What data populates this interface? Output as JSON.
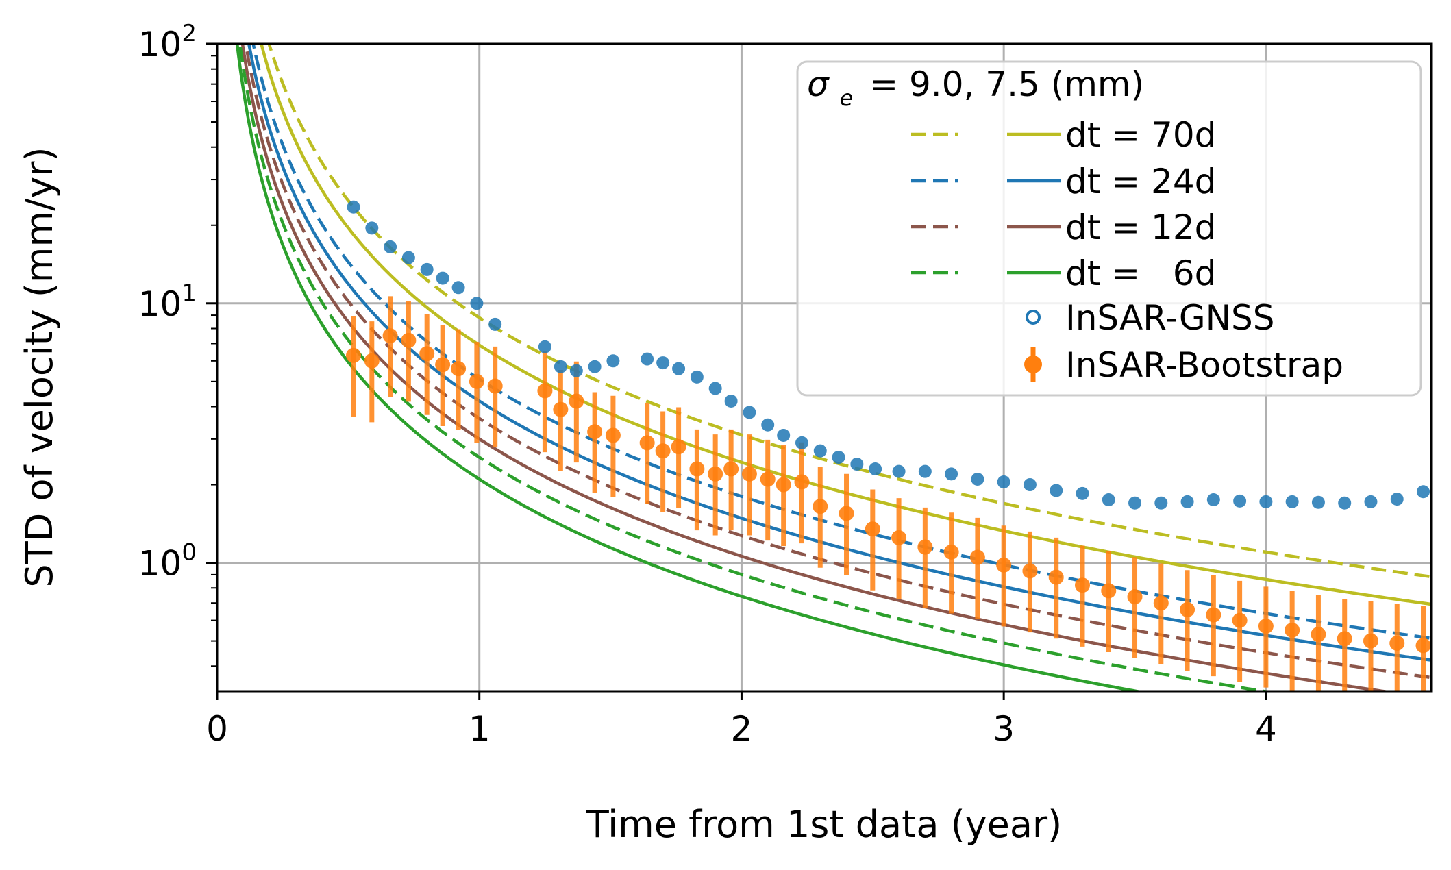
{
  "chart_data": {
    "type": "line",
    "title": "",
    "xlabel": "Time from 1st data (year)",
    "ylabel": "STD of velocity (mm/yr)",
    "xlim": [
      0,
      4.63
    ],
    "ylim": [
      0.32,
      100
    ],
    "yscale": "log",
    "grid": true,
    "xticks": [
      0,
      1,
      2,
      3,
      4
    ],
    "xtick_labels": [
      "0",
      "1",
      "2",
      "3",
      "4"
    ],
    "yticks": [
      1,
      10,
      100
    ],
    "ytick_labels": [
      {
        "base": "10",
        "exp": "0"
      },
      {
        "base": "10",
        "exp": "1"
      },
      {
        "base": "10",
        "exp": "2"
      }
    ],
    "legend": {
      "position": "top-right",
      "title_symbol": "σ",
      "title_subscript": "e",
      "title_rest": "= 9.0, 7.5 (mm)",
      "entries": [
        {
          "label": "dt = 70d"
        },
        {
          "label": "dt = 24d"
        },
        {
          "label": "dt = 12d"
        },
        {
          "label": "dt =   6d"
        },
        {
          "label": "InSAR-GNSS"
        },
        {
          "label": "InSAR-Bootstrap"
        }
      ]
    },
    "model_curves": [
      {
        "name": "dt = 70d",
        "color": "#bcbd22",
        "dashed_k": 8.8,
        "solid_k": 6.9
      },
      {
        "name": "dt = 24d",
        "color": "#1f77b4",
        "dashed_k": 5.1,
        "solid_k": 4.2
      },
      {
        "name": "dt = 12d",
        "color": "#8c564b",
        "dashed_k": 3.6,
        "solid_k": 3.0
      },
      {
        "name": "dt =   6d",
        "color": "#2ca02c",
        "dashed_k": 2.55,
        "solid_k": 2.1
      }
    ],
    "model_form": "std = k * t^-1.5",
    "series": [
      {
        "name": "InSAR-GNSS",
        "color": "#1f77b4",
        "x": [
          0.52,
          0.59,
          0.66,
          0.73,
          0.8,
          0.86,
          0.92,
          0.99,
          1.06,
          1.25,
          1.31,
          1.37,
          1.44,
          1.51,
          1.64,
          1.7,
          1.76,
          1.83,
          1.9,
          1.96,
          2.03,
          2.1,
          2.16,
          2.23,
          2.3,
          2.37,
          2.44,
          2.51,
          2.6,
          2.7,
          2.8,
          2.9,
          3.0,
          3.1,
          3.2,
          3.3,
          3.4,
          3.5,
          3.6,
          3.7,
          3.8,
          3.9,
          4.0,
          4.1,
          4.2,
          4.3,
          4.4,
          4.5,
          4.6
        ],
        "y": [
          23.5,
          19.5,
          16.5,
          15.0,
          13.5,
          12.5,
          11.5,
          10.0,
          8.3,
          6.8,
          5.7,
          5.5,
          5.7,
          6.0,
          6.1,
          5.9,
          5.6,
          5.2,
          4.7,
          4.2,
          3.8,
          3.4,
          3.1,
          2.9,
          2.7,
          2.55,
          2.4,
          2.3,
          2.25,
          2.25,
          2.2,
          2.1,
          2.05,
          2.0,
          1.9,
          1.85,
          1.75,
          1.7,
          1.7,
          1.72,
          1.75,
          1.73,
          1.72,
          1.72,
          1.71,
          1.7,
          1.72,
          1.76,
          1.88
        ]
      },
      {
        "name": "InSAR-Bootstrap",
        "color": "#ff7f0e",
        "x": [
          0.52,
          0.59,
          0.66,
          0.73,
          0.8,
          0.86,
          0.92,
          0.99,
          1.06,
          1.25,
          1.31,
          1.37,
          1.44,
          1.51,
          1.64,
          1.7,
          1.76,
          1.83,
          1.9,
          1.96,
          2.03,
          2.1,
          2.16,
          2.23,
          2.3,
          2.4,
          2.5,
          2.6,
          2.7,
          2.8,
          2.9,
          3.0,
          3.1,
          3.2,
          3.3,
          3.4,
          3.5,
          3.6,
          3.7,
          3.8,
          3.9,
          4.0,
          4.1,
          4.2,
          4.3,
          4.4,
          4.5,
          4.6
        ],
        "y": [
          6.3,
          6.0,
          7.5,
          7.2,
          6.4,
          5.8,
          5.6,
          5.0,
          4.8,
          4.6,
          3.9,
          4.2,
          3.2,
          3.1,
          2.9,
          2.7,
          2.8,
          2.3,
          2.2,
          2.3,
          2.2,
          2.1,
          2.0,
          2.05,
          1.65,
          1.55,
          1.35,
          1.25,
          1.15,
          1.1,
          1.05,
          0.98,
          0.93,
          0.88,
          0.82,
          0.78,
          0.74,
          0.7,
          0.66,
          0.63,
          0.6,
          0.57,
          0.55,
          0.53,
          0.51,
          0.5,
          0.49,
          0.48
        ],
        "err_frac": 0.42
      }
    ]
  }
}
